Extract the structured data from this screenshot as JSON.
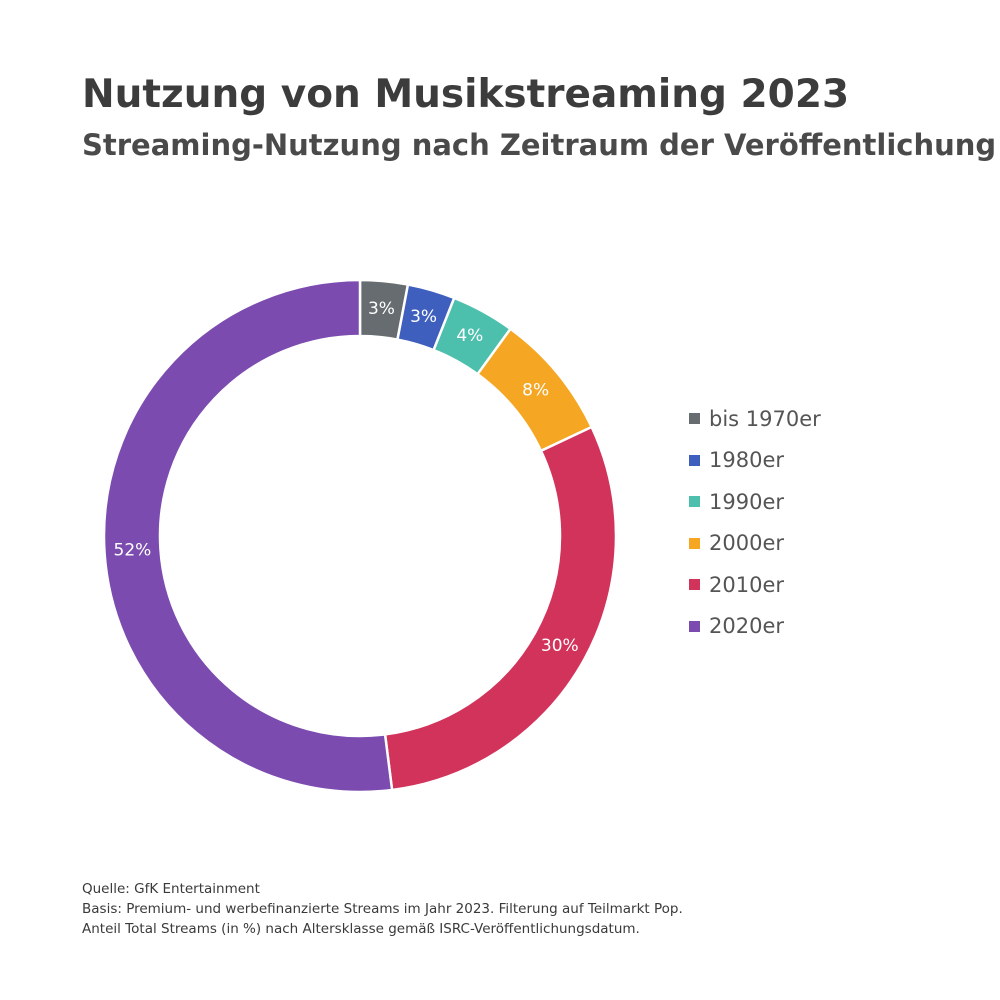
{
  "title": "Nutzung von Musikstreaming 2023",
  "subtitle": "Streaming-Nutzung nach Zeitraum der Veröffentlichung",
  "chart_data": {
    "type": "pie",
    "donut": true,
    "title": "Nutzung von Musikstreaming 2023",
    "subtitle": "Streaming-Nutzung nach Zeitraum der Veröffentlichung",
    "legend_position": "right",
    "categories": [
      "bis 1970er",
      "1980er",
      "1990er",
      "2000er",
      "2010er",
      "2020er"
    ],
    "values": [
      3,
      3,
      4,
      8,
      30,
      52
    ],
    "data_labels": [
      "3%",
      "3%",
      "4%",
      "8%",
      "30%",
      "52%"
    ],
    "colors": [
      "#666c70",
      "#3f5fbf",
      "#4cbfad",
      "#f5a623",
      "#d2335b",
      "#7b4bb0"
    ]
  },
  "footnotes": {
    "source": "Quelle: GfK Entertainment",
    "basis": "Basis: Premium- und werbefinanzierte Streams im Jahr 2023. Filterung auf Teilmarkt Pop.",
    "note": "Anteil Total Streams (in %) nach Altersklasse gemäß ISRC-Veröffentlichungsdatum."
  }
}
